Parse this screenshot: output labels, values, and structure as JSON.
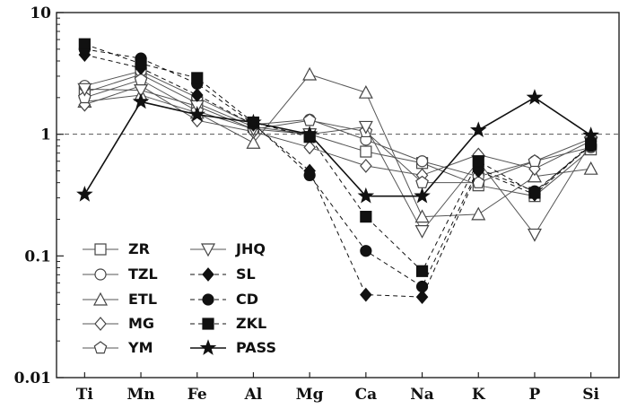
{
  "chart_data": {
    "type": "line",
    "title": "",
    "xlabel": "",
    "ylabel": "",
    "yscale": "log",
    "ylim": [
      0.01,
      10
    ],
    "grid": false,
    "reference_line": {
      "y": 1,
      "style": "dashed"
    },
    "categories": [
      "Ti",
      "Mn",
      "Fe",
      "Al",
      "Mg",
      "Ca",
      "Na",
      "K",
      "P",
      "Si"
    ],
    "y_ticks": [
      {
        "value": 0.01,
        "label": "0.01"
      },
      {
        "value": 0.1,
        "label": "0.1"
      },
      {
        "value": 1,
        "label": "1"
      },
      {
        "value": 10,
        "label": "10"
      }
    ],
    "legend_position": "bottom-left",
    "series": [
      {
        "name": "ZR",
        "marker": "square-open",
        "line": "solid",
        "color": "#555555",
        "values": [
          2.2,
          3.1,
          1.8,
          1.15,
          1.0,
          0.72,
          0.58,
          0.38,
          0.31,
          0.75
        ]
      },
      {
        "name": "TZL",
        "marker": "circle-open",
        "line": "solid",
        "color": "#555555",
        "values": [
          2.5,
          3.3,
          2.0,
          1.2,
          1.32,
          0.9,
          0.6,
          0.45,
          0.6,
          0.78
        ]
      },
      {
        "name": "ETL",
        "marker": "triangle-open",
        "line": "solid",
        "color": "#555555",
        "values": [
          1.85,
          2.1,
          1.5,
          0.85,
          3.1,
          2.2,
          0.21,
          0.22,
          0.45,
          0.52
        ]
      },
      {
        "name": "MG",
        "marker": "diamond-open",
        "line": "solid",
        "color": "#555555",
        "values": [
          1.75,
          2.5,
          1.3,
          1.05,
          0.78,
          0.55,
          0.46,
          0.68,
          0.52,
          0.88
        ]
      },
      {
        "name": "YM",
        "marker": "pentagon-open",
        "line": "solid",
        "color": "#555555",
        "values": [
          2.0,
          2.8,
          1.55,
          1.1,
          1.3,
          1.05,
          0.4,
          0.4,
          0.6,
          0.92
        ]
      },
      {
        "name": "JHQ",
        "marker": "triangle-down-open",
        "line": "solid",
        "color": "#555555",
        "values": [
          2.35,
          2.3,
          1.7,
          1.1,
          1.0,
          1.15,
          0.16,
          0.6,
          0.15,
          0.85
        ]
      },
      {
        "name": "SL",
        "marker": "diamond-filled",
        "line": "dashed",
        "color": "#111111",
        "values": [
          4.5,
          3.5,
          2.1,
          1.2,
          0.5,
          0.048,
          0.046,
          0.5,
          0.32,
          0.82
        ]
      },
      {
        "name": "CD",
        "marker": "circle-filled",
        "line": "dashed",
        "color": "#111111",
        "values": [
          5.0,
          4.2,
          2.6,
          1.22,
          0.46,
          0.11,
          0.056,
          0.52,
          0.34,
          0.8
        ]
      },
      {
        "name": "ZKL",
        "marker": "square-filled",
        "line": "dashed",
        "color": "#111111",
        "values": [
          5.5,
          3.8,
          2.9,
          1.25,
          0.95,
          0.21,
          0.075,
          0.6,
          0.33,
          0.83
        ]
      },
      {
        "name": "PASS",
        "marker": "star-filled",
        "line": "solid",
        "color": "#111111",
        "values": [
          0.32,
          1.85,
          1.45,
          1.25,
          1.0,
          0.31,
          0.31,
          1.08,
          2.0,
          0.98
        ]
      }
    ]
  }
}
